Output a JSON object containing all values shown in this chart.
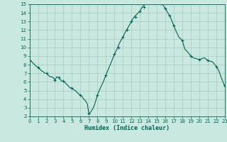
{
  "title": "",
  "xlabel": "Humidex (Indice chaleur)",
  "background_color": "#c8e8e0",
  "grid_color": "#a8c8c0",
  "line_color": "#006655",
  "marker_color": "#006655",
  "ylim": [
    2,
    15
  ],
  "xlim": [
    0,
    23
  ],
  "yticks": [
    2,
    3,
    4,
    5,
    6,
    7,
    8,
    9,
    10,
    11,
    12,
    13,
    14,
    15
  ],
  "xticks": [
    0,
    1,
    2,
    3,
    4,
    5,
    6,
    7,
    8,
    9,
    10,
    11,
    12,
    13,
    14,
    15,
    16,
    17,
    18,
    19,
    20,
    21,
    22,
    23
  ],
  "x": [
    0,
    0.2,
    0.4,
    0.6,
    0.8,
    1.0,
    1.2,
    1.4,
    1.6,
    1.8,
    2.0,
    2.2,
    2.4,
    2.6,
    2.8,
    3.0,
    3.2,
    3.4,
    3.6,
    3.8,
    4.0,
    4.2,
    4.4,
    4.6,
    4.8,
    5.0,
    5.2,
    5.4,
    5.6,
    5.8,
    6.0,
    6.2,
    6.4,
    6.6,
    6.8,
    7.0,
    7.2,
    7.4,
    7.6,
    7.8,
    8.0,
    8.3,
    8.6,
    9.0,
    9.3,
    9.6,
    10.0,
    10.3,
    10.6,
    11.0,
    11.3,
    11.6,
    12.0,
    12.3,
    12.6,
    13.0,
    13.3,
    13.6,
    14.0,
    14.3,
    14.6,
    15.0,
    15.3,
    15.6,
    16.0,
    16.3,
    16.6,
    17.0,
    17.3,
    17.6,
    18.0,
    18.3,
    18.6,
    19.0,
    19.3,
    19.6,
    20.0,
    20.3,
    20.6,
    21.0,
    21.3,
    21.6,
    22.0,
    22.3,
    22.6,
    23.0
  ],
  "y": [
    8.5,
    8.4,
    8.2,
    8.0,
    7.8,
    7.7,
    7.5,
    7.3,
    7.2,
    7.0,
    7.0,
    6.8,
    6.6,
    6.6,
    6.5,
    6.2,
    6.6,
    6.5,
    6.3,
    6.1,
    6.1,
    5.9,
    5.7,
    5.5,
    5.3,
    5.3,
    5.1,
    5.0,
    4.8,
    4.6,
    4.5,
    4.3,
    4.0,
    3.8,
    3.5,
    2.3,
    2.5,
    2.8,
    3.2,
    3.8,
    4.5,
    5.2,
    5.8,
    6.8,
    7.5,
    8.2,
    9.2,
    9.8,
    10.5,
    11.2,
    11.8,
    12.3,
    13.0,
    13.5,
    13.8,
    14.2,
    14.7,
    15.0,
    15.2,
    15.4,
    15.5,
    15.5,
    15.3,
    15.1,
    14.5,
    14.0,
    13.5,
    12.5,
    11.8,
    11.2,
    10.8,
    9.8,
    9.5,
    9.0,
    8.8,
    8.7,
    8.6,
    8.7,
    8.8,
    8.5,
    8.4,
    8.3,
    7.8,
    7.3,
    6.5,
    5.5
  ],
  "marker_x": [
    0,
    1,
    2,
    3,
    3.5,
    4,
    5,
    6,
    7,
    8,
    9,
    10,
    10.5,
    11,
    11.5,
    12,
    12.5,
    13,
    13.5,
    14,
    14.5,
    15,
    15.5,
    16,
    16.5,
    17,
    18,
    19,
    20,
    21,
    22,
    23
  ],
  "marker_y": [
    8.5,
    7.7,
    7.0,
    6.2,
    6.5,
    6.1,
    5.3,
    4.5,
    2.3,
    4.5,
    6.8,
    9.2,
    10.0,
    11.2,
    12.0,
    13.0,
    13.5,
    14.2,
    14.7,
    15.2,
    15.5,
    15.5,
    15.1,
    14.5,
    13.7,
    12.5,
    10.8,
    9.0,
    8.6,
    8.5,
    7.8,
    5.5
  ]
}
